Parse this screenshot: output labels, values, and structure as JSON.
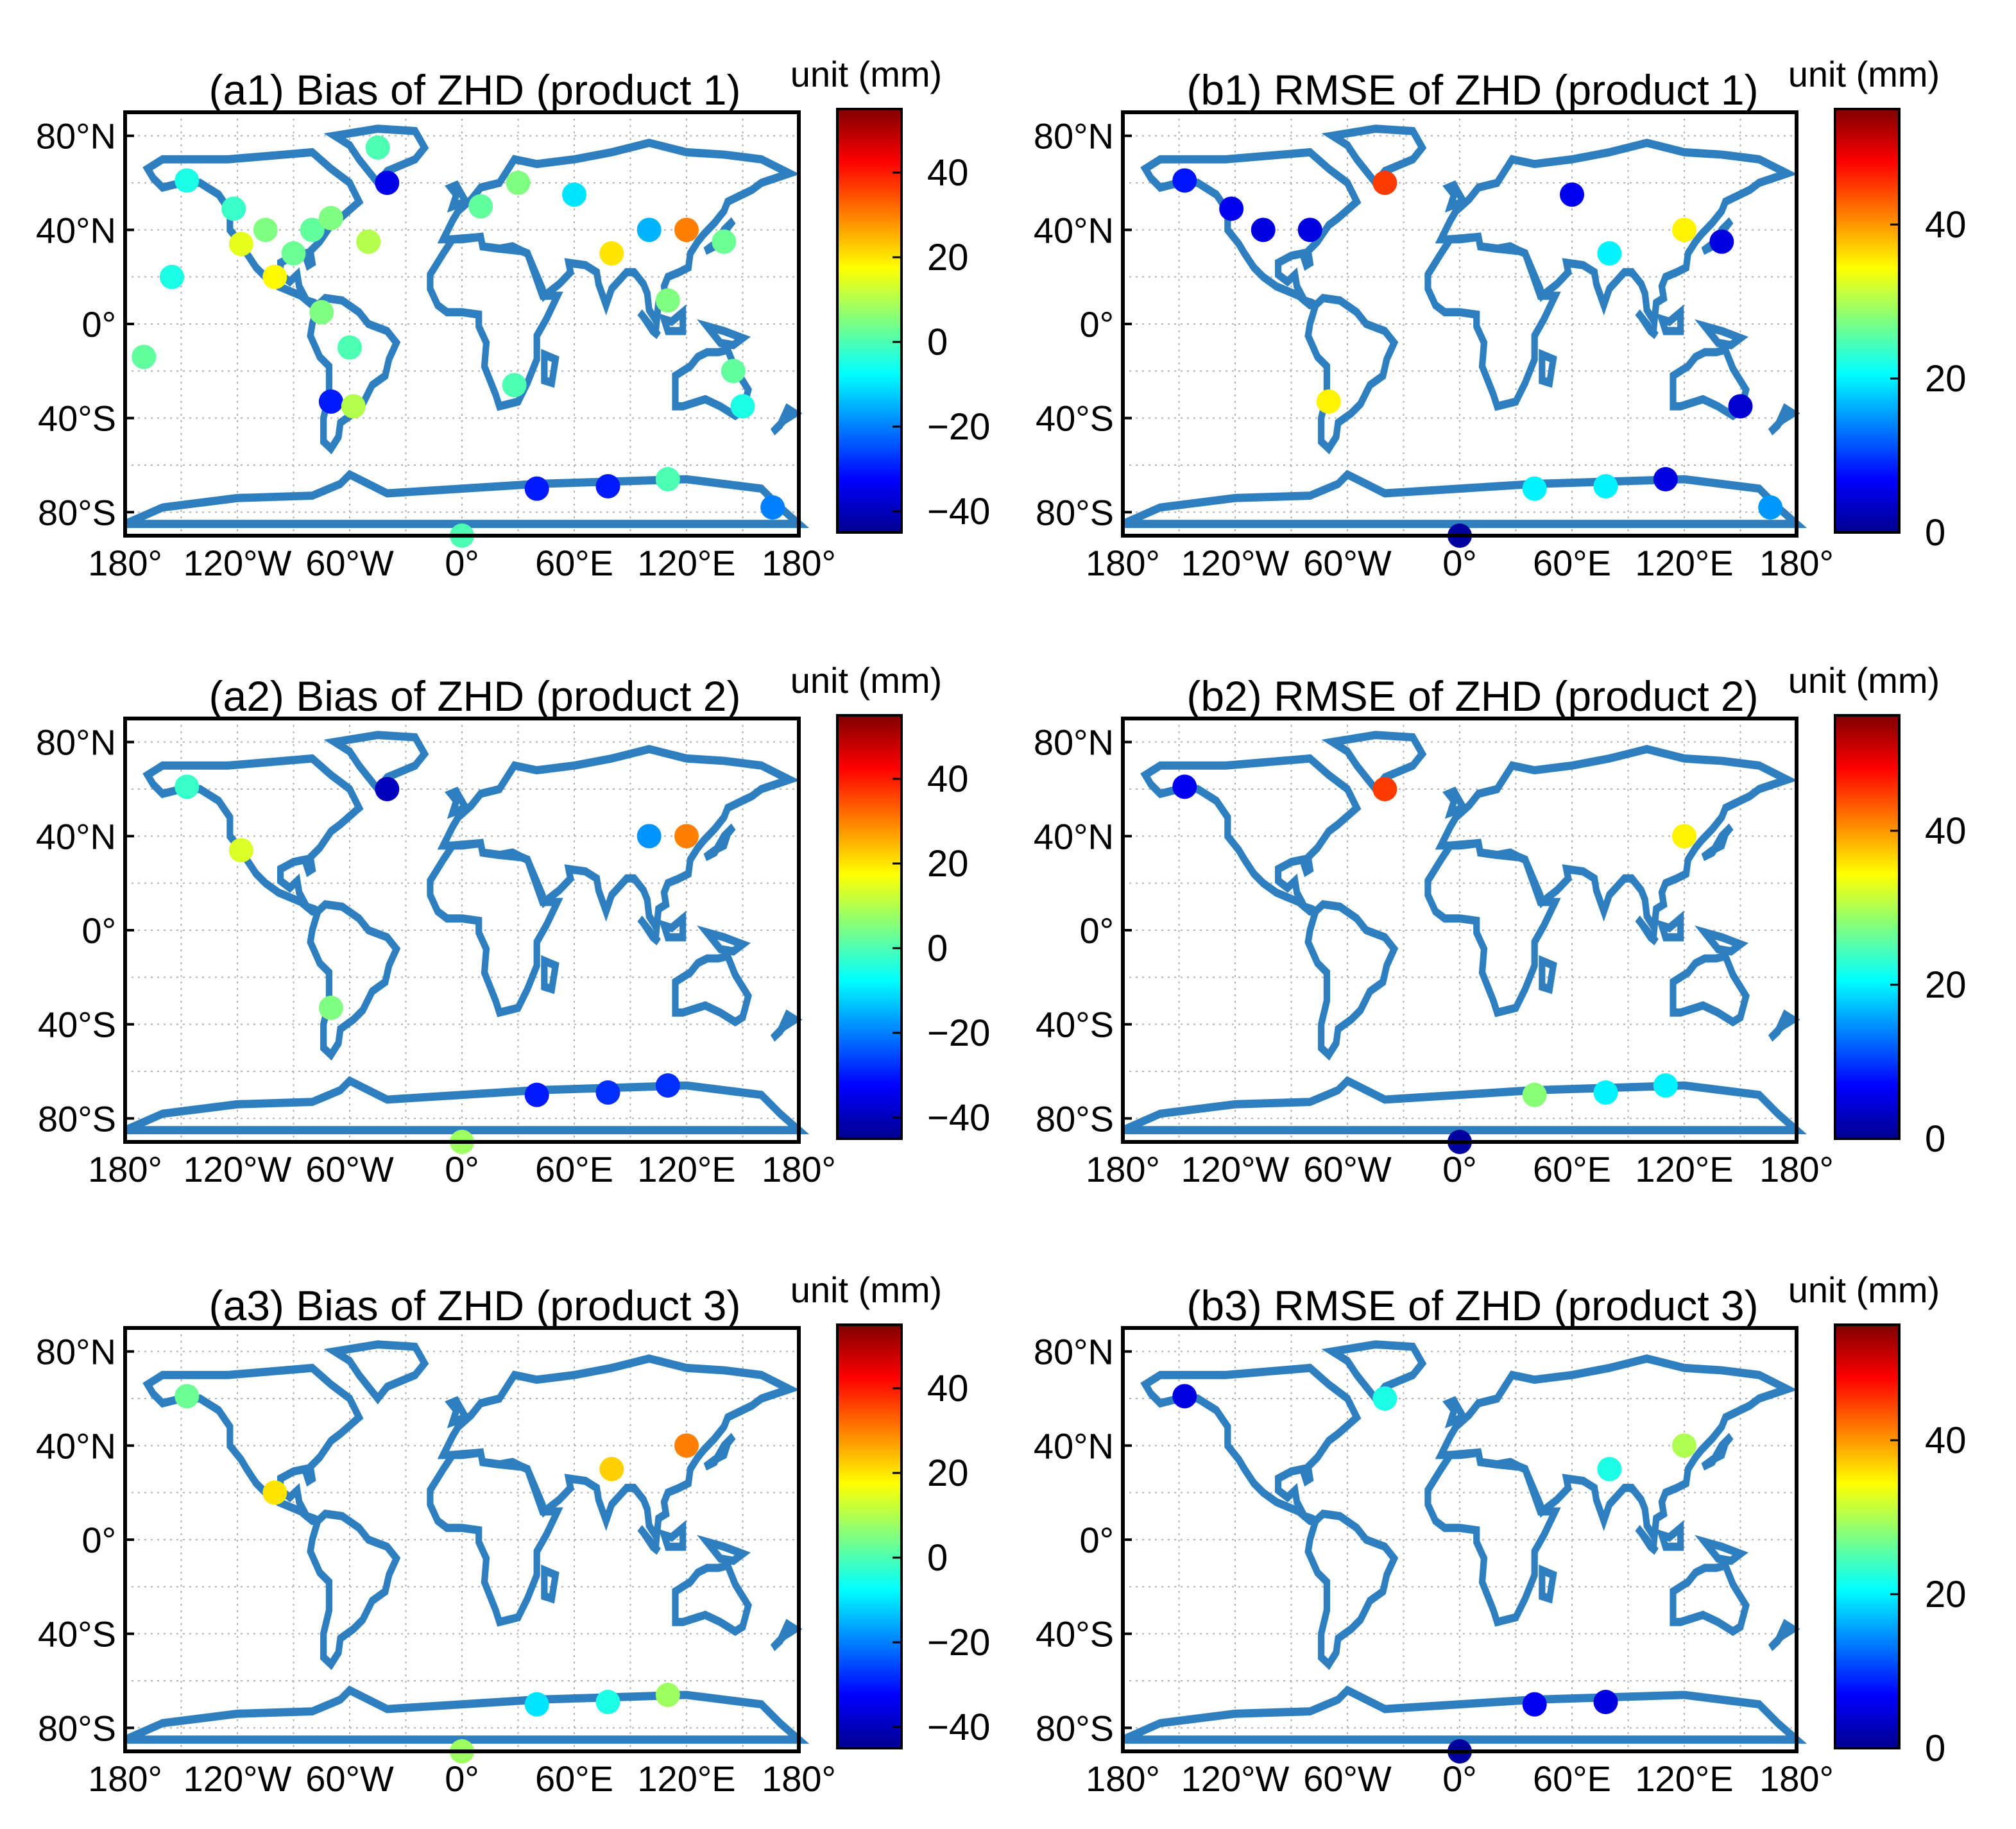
{
  "figure": {
    "panels": [
      {
        "id": "a1",
        "title": "(a1) Bias of ZHD (product 1)",
        "unit": "unit (mm)",
        "metric": "bias",
        "product": 1
      },
      {
        "id": "b1",
        "title": "(b1) RMSE of ZHD (product 1)",
        "unit": "unit (mm)",
        "metric": "rmse",
        "product": 1
      },
      {
        "id": "a2",
        "title": "(a2) Bias of ZHD (product 2)",
        "unit": "unit (mm)",
        "metric": "bias",
        "product": 2
      },
      {
        "id": "b2",
        "title": "(b2) RMSE of ZHD (product 2)",
        "unit": "unit (mm)",
        "metric": "rmse",
        "product": 2
      },
      {
        "id": "a3",
        "title": "(a3) Bias of ZHD (product 3)",
        "unit": "unit (mm)",
        "metric": "bias",
        "product": 3
      },
      {
        "id": "b3",
        "title": "(b3) RMSE of ZHD (product 3)",
        "unit": "unit (mm)",
        "metric": "rmse",
        "product": 3
      }
    ],
    "lat_ticks": [
      {
        "value": 80,
        "label": "80°N"
      },
      {
        "value": 40,
        "label": "40°N"
      },
      {
        "value": 0,
        "label": "0°"
      },
      {
        "value": -40,
        "label": "40°S"
      },
      {
        "value": -80,
        "label": "80°S"
      }
    ],
    "lon_ticks": [
      {
        "value": -180,
        "label": "180°"
      },
      {
        "value": -120,
        "label": "120°W"
      },
      {
        "value": -60,
        "label": "60°W"
      },
      {
        "value": 0,
        "label": "0°"
      },
      {
        "value": 60,
        "label": "60°E"
      },
      {
        "value": 120,
        "label": "120°E"
      },
      {
        "value": 180,
        "label": "180°"
      }
    ],
    "colors": {
      "coastline": "#2e7fc0",
      "grid": "#b0b0b0",
      "frame": "#000000"
    }
  },
  "chart_data": [
    {
      "type": "scatter-map",
      "panel": "a1",
      "title": "(a1) Bias of ZHD (product 1)",
      "colorbar": {
        "label": "unit (mm)",
        "range": [
          -45,
          55
        ],
        "ticks": [
          40,
          20,
          0,
          -20,
          -40
        ],
        "colormap": "jet"
      },
      "xlim": [
        -180,
        180
      ],
      "ylim": [
        -90,
        90
      ],
      "points": [
        {
          "lon": -147,
          "lat": 61,
          "value": -5
        },
        {
          "lon": -122,
          "lat": 49,
          "value": -2
        },
        {
          "lon": -118,
          "lat": 34,
          "value": 15
        },
        {
          "lon": -105,
          "lat": 40,
          "value": 5
        },
        {
          "lon": -100,
          "lat": 20,
          "value": 18
        },
        {
          "lon": -90,
          "lat": 30,
          "value": 3
        },
        {
          "lon": -80,
          "lat": 40,
          "value": 2
        },
        {
          "lon": -70,
          "lat": 45,
          "value": 5
        },
        {
          "lon": -75,
          "lat": 5,
          "value": 5
        },
        {
          "lon": -60,
          "lat": -10,
          "value": 0
        },
        {
          "lon": -70,
          "lat": -33,
          "value": -30
        },
        {
          "lon": -58,
          "lat": -35,
          "value": 10
        },
        {
          "lon": -45,
          "lat": 75,
          "value": 0
        },
        {
          "lon": -40,
          "lat": 60,
          "value": -35
        },
        {
          "lon": -50,
          "lat": 35,
          "value": 10
        },
        {
          "lon": -155,
          "lat": 20,
          "value": -5
        },
        {
          "lon": -170,
          "lat": -14,
          "value": 2
        },
        {
          "lon": 10,
          "lat": 50,
          "value": 2
        },
        {
          "lon": 30,
          "lat": 60,
          "value": 5
        },
        {
          "lon": 60,
          "lat": 55,
          "value": -10
        },
        {
          "lon": 80,
          "lat": 30,
          "value": 20
        },
        {
          "lon": 100,
          "lat": 40,
          "value": -15
        },
        {
          "lon": 120,
          "lat": 40,
          "value": 30
        },
        {
          "lon": 140,
          "lat": 35,
          "value": 3
        },
        {
          "lon": 110,
          "lat": 10,
          "value": 5
        },
        {
          "lon": 145,
          "lat": -20,
          "value": 2
        },
        {
          "lon": 150,
          "lat": -35,
          "value": -5
        },
        {
          "lon": 28,
          "lat": -26,
          "value": 0
        },
        {
          "lon": 40,
          "lat": -70,
          "value": -30
        },
        {
          "lon": 78,
          "lat": -69,
          "value": -30
        },
        {
          "lon": 110,
          "lat": -66,
          "value": 0
        },
        {
          "lon": 166,
          "lat": -78,
          "value": -20
        },
        {
          "lon": 0,
          "lat": -90,
          "value": 0
        }
      ]
    },
    {
      "type": "scatter-map",
      "panel": "b1",
      "title": "(b1) RMSE of ZHD (product 1)",
      "colorbar": {
        "label": "unit (mm)",
        "range": [
          0,
          55
        ],
        "ticks": [
          40,
          20,
          0
        ],
        "colormap": "jet"
      },
      "xlim": [
        -180,
        180
      ],
      "ylim": [
        -90,
        90
      ],
      "points": [
        {
          "lon": -147,
          "lat": 61,
          "value": 8
        },
        {
          "lon": -122,
          "lat": 49,
          "value": 6
        },
        {
          "lon": -105,
          "lat": 40,
          "value": 5
        },
        {
          "lon": -80,
          "lat": 40,
          "value": 5
        },
        {
          "lon": -70,
          "lat": -33,
          "value": 35
        },
        {
          "lon": -40,
          "lat": 60,
          "value": 45
        },
        {
          "lon": 60,
          "lat": 55,
          "value": 6
        },
        {
          "lon": 80,
          "lat": 30,
          "value": 20
        },
        {
          "lon": 120,
          "lat": 40,
          "value": 35
        },
        {
          "lon": 140,
          "lat": 35,
          "value": 5
        },
        {
          "lon": 150,
          "lat": -35,
          "value": 4
        },
        {
          "lon": 40,
          "lat": -70,
          "value": 20
        },
        {
          "lon": 78,
          "lat": -69,
          "value": 20
        },
        {
          "lon": 110,
          "lat": -66,
          "value": 5
        },
        {
          "lon": 166,
          "lat": -78,
          "value": 15
        },
        {
          "lon": 0,
          "lat": -90,
          "value": 1
        }
      ]
    },
    {
      "type": "scatter-map",
      "panel": "a2",
      "title": "(a2) Bias of ZHD (product 2)",
      "colorbar": {
        "label": "unit (mm)",
        "range": [
          -45,
          55
        ],
        "ticks": [
          40,
          20,
          0,
          -20,
          -40
        ],
        "colormap": "jet"
      },
      "xlim": [
        -180,
        180
      ],
      "ylim": [
        -90,
        90
      ],
      "points": [
        {
          "lon": -147,
          "lat": 61,
          "value": -2
        },
        {
          "lon": -118,
          "lat": 34,
          "value": 14
        },
        {
          "lon": -40,
          "lat": 60,
          "value": -40
        },
        {
          "lon": -70,
          "lat": -33,
          "value": 5
        },
        {
          "lon": 120,
          "lat": 40,
          "value": 30
        },
        {
          "lon": 100,
          "lat": 40,
          "value": -18
        },
        {
          "lon": 40,
          "lat": -70,
          "value": -30
        },
        {
          "lon": 78,
          "lat": -69,
          "value": -28
        },
        {
          "lon": 110,
          "lat": -66,
          "value": -28
        },
        {
          "lon": 0,
          "lat": -90,
          "value": 8
        }
      ]
    },
    {
      "type": "scatter-map",
      "panel": "b2",
      "title": "(b2) RMSE of ZHD (product 2)",
      "colorbar": {
        "label": "unit (mm)",
        "range": [
          0,
          55
        ],
        "ticks": [
          40,
          20,
          0
        ],
        "colormap": "jet"
      },
      "xlim": [
        -180,
        180
      ],
      "ylim": [
        -90,
        90
      ],
      "points": [
        {
          "lon": -147,
          "lat": 61,
          "value": 6
        },
        {
          "lon": -40,
          "lat": 60,
          "value": 45
        },
        {
          "lon": 120,
          "lat": 40,
          "value": 35
        },
        {
          "lon": 40,
          "lat": -70,
          "value": 28
        },
        {
          "lon": 78,
          "lat": -69,
          "value": 20
        },
        {
          "lon": 110,
          "lat": -66,
          "value": 20
        },
        {
          "lon": 0,
          "lat": -90,
          "value": 1
        }
      ]
    },
    {
      "type": "scatter-map",
      "panel": "a3",
      "title": "(a3) Bias of ZHD (product 3)",
      "colorbar": {
        "label": "unit (mm)",
        "range": [
          -45,
          55
        ],
        "ticks": [
          40,
          20,
          0,
          -20,
          -40
        ],
        "colormap": "jet"
      },
      "xlim": [
        -180,
        180
      ],
      "ylim": [
        -90,
        90
      ],
      "points": [
        {
          "lon": -147,
          "lat": 61,
          "value": 3
        },
        {
          "lon": -100,
          "lat": 20,
          "value": 20
        },
        {
          "lon": 80,
          "lat": 30,
          "value": 22
        },
        {
          "lon": 120,
          "lat": 40,
          "value": 30
        },
        {
          "lon": 40,
          "lat": -70,
          "value": -10
        },
        {
          "lon": 78,
          "lat": -69,
          "value": -5
        },
        {
          "lon": 110,
          "lat": -66,
          "value": 8
        },
        {
          "lon": 0,
          "lat": -90,
          "value": 8
        }
      ]
    },
    {
      "type": "scatter-map",
      "panel": "b3",
      "title": "(b3) RMSE of ZHD (product 3)",
      "colorbar": {
        "label": "unit (mm)",
        "range": [
          0,
          55
        ],
        "ticks": [
          40,
          20,
          0
        ],
        "colormap": "jet"
      },
      "xlim": [
        -180,
        180
      ],
      "ylim": [
        -90,
        90
      ],
      "points": [
        {
          "lon": -147,
          "lat": 61,
          "value": 5
        },
        {
          "lon": -40,
          "lat": 60,
          "value": 22
        },
        {
          "lon": 80,
          "lat": 30,
          "value": 22
        },
        {
          "lon": 120,
          "lat": 40,
          "value": 30
        },
        {
          "lon": 40,
          "lat": -70,
          "value": 6
        },
        {
          "lon": 78,
          "lat": -69,
          "value": 5
        },
        {
          "lon": 0,
          "lat": -90,
          "value": 1
        }
      ]
    }
  ]
}
